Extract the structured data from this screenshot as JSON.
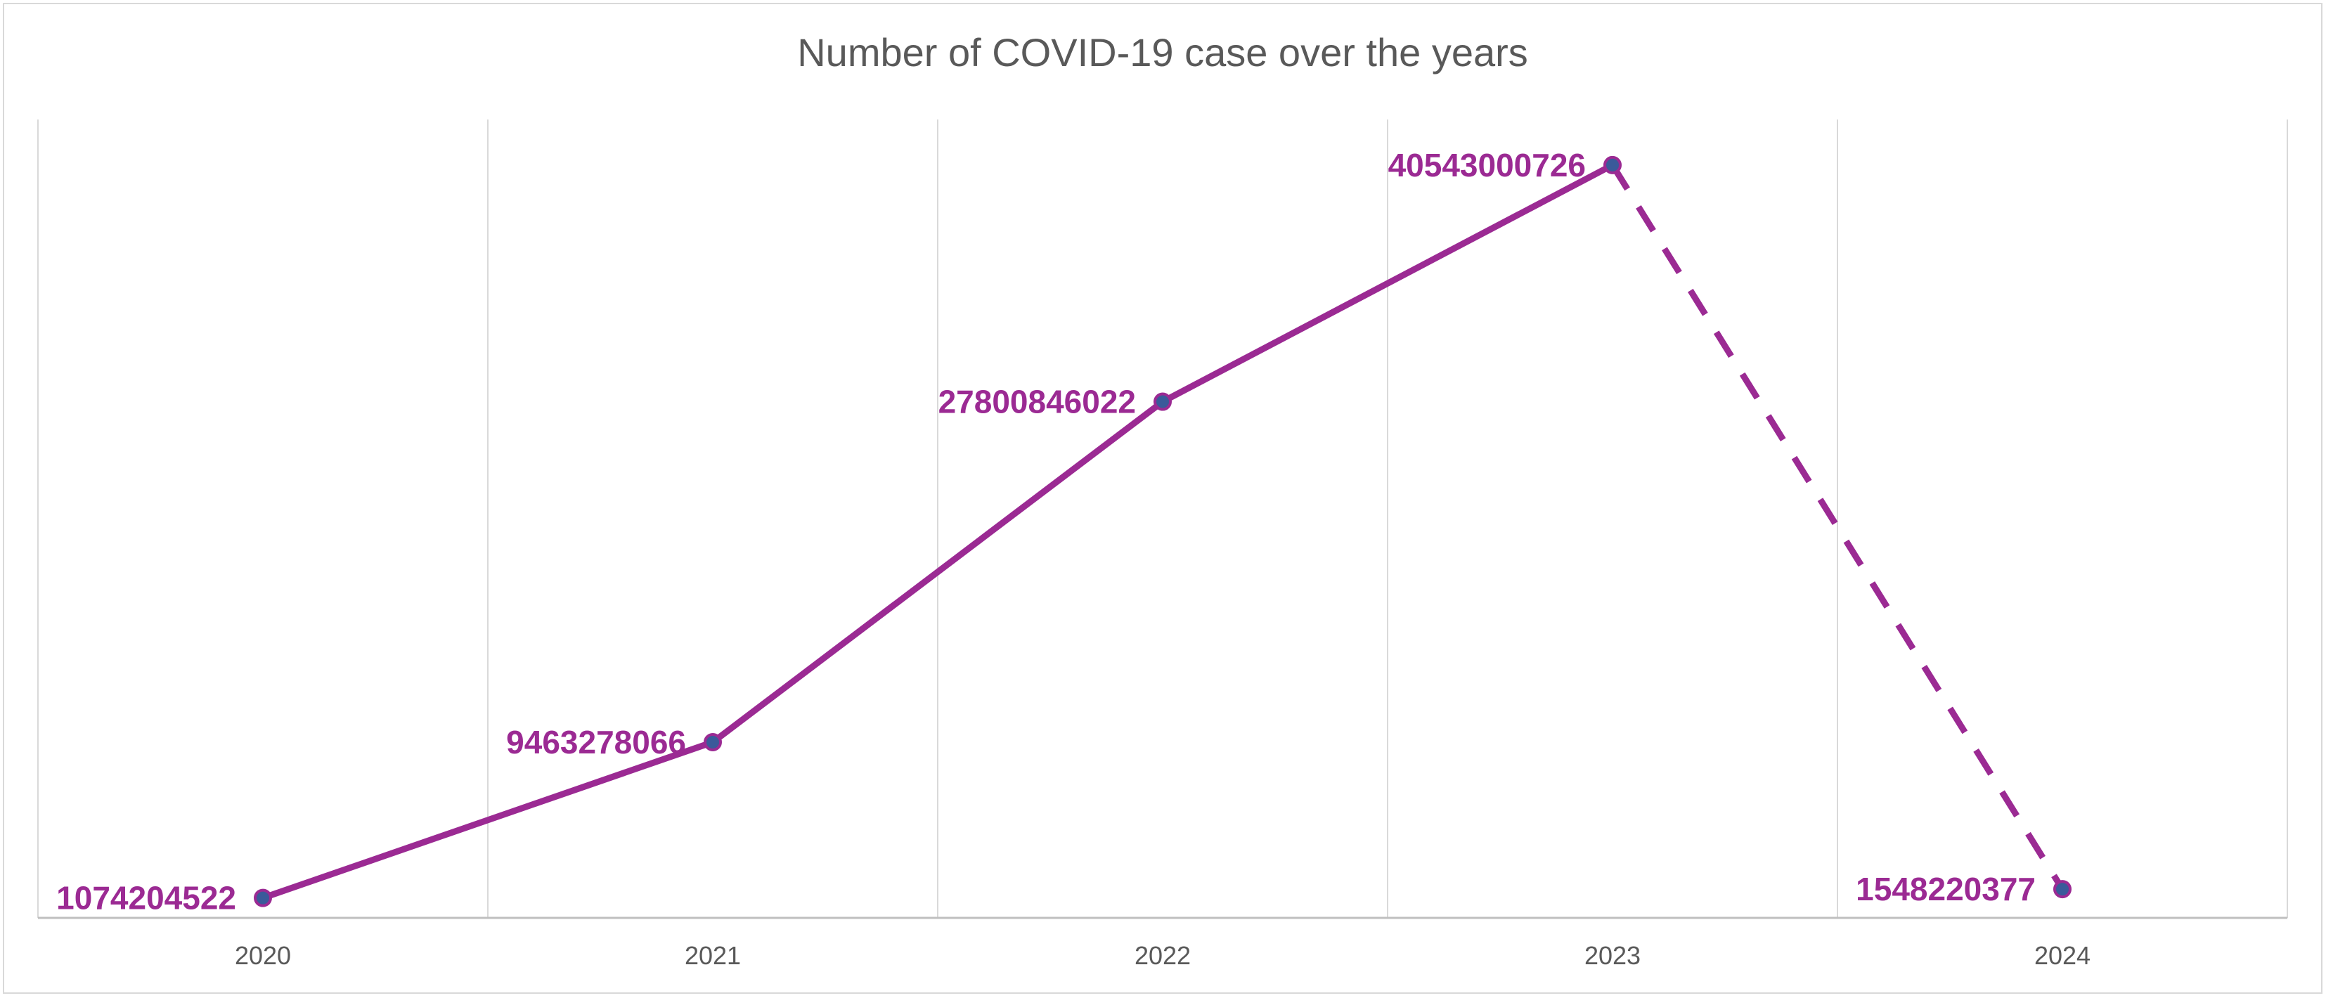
{
  "chart_data": {
    "type": "line",
    "title": "Number of COVID-19 case over the years",
    "xlabel": "",
    "ylabel": "",
    "categories": [
      "2020",
      "2021",
      "2022",
      "2023",
      "2024"
    ],
    "series": [
      {
        "values": [
          1074204522,
          9463278066,
          27800846022,
          40543000726,
          1548220377
        ],
        "data_labels": [
          "1074204522",
          "9463278066",
          "27800846022",
          "40543000726",
          "1548220377"
        ],
        "dashed_from_index": 3
      }
    ],
    "ylim": [
      0,
      43000000000
    ],
    "grid": "vertical",
    "legend": "none",
    "colors": {
      "line": "#9b2a93",
      "marker_fill": "#3a5a9a",
      "label": "#9b2a93",
      "grid": "#d9d9d9",
      "axis": "#bfbfbf"
    }
  }
}
